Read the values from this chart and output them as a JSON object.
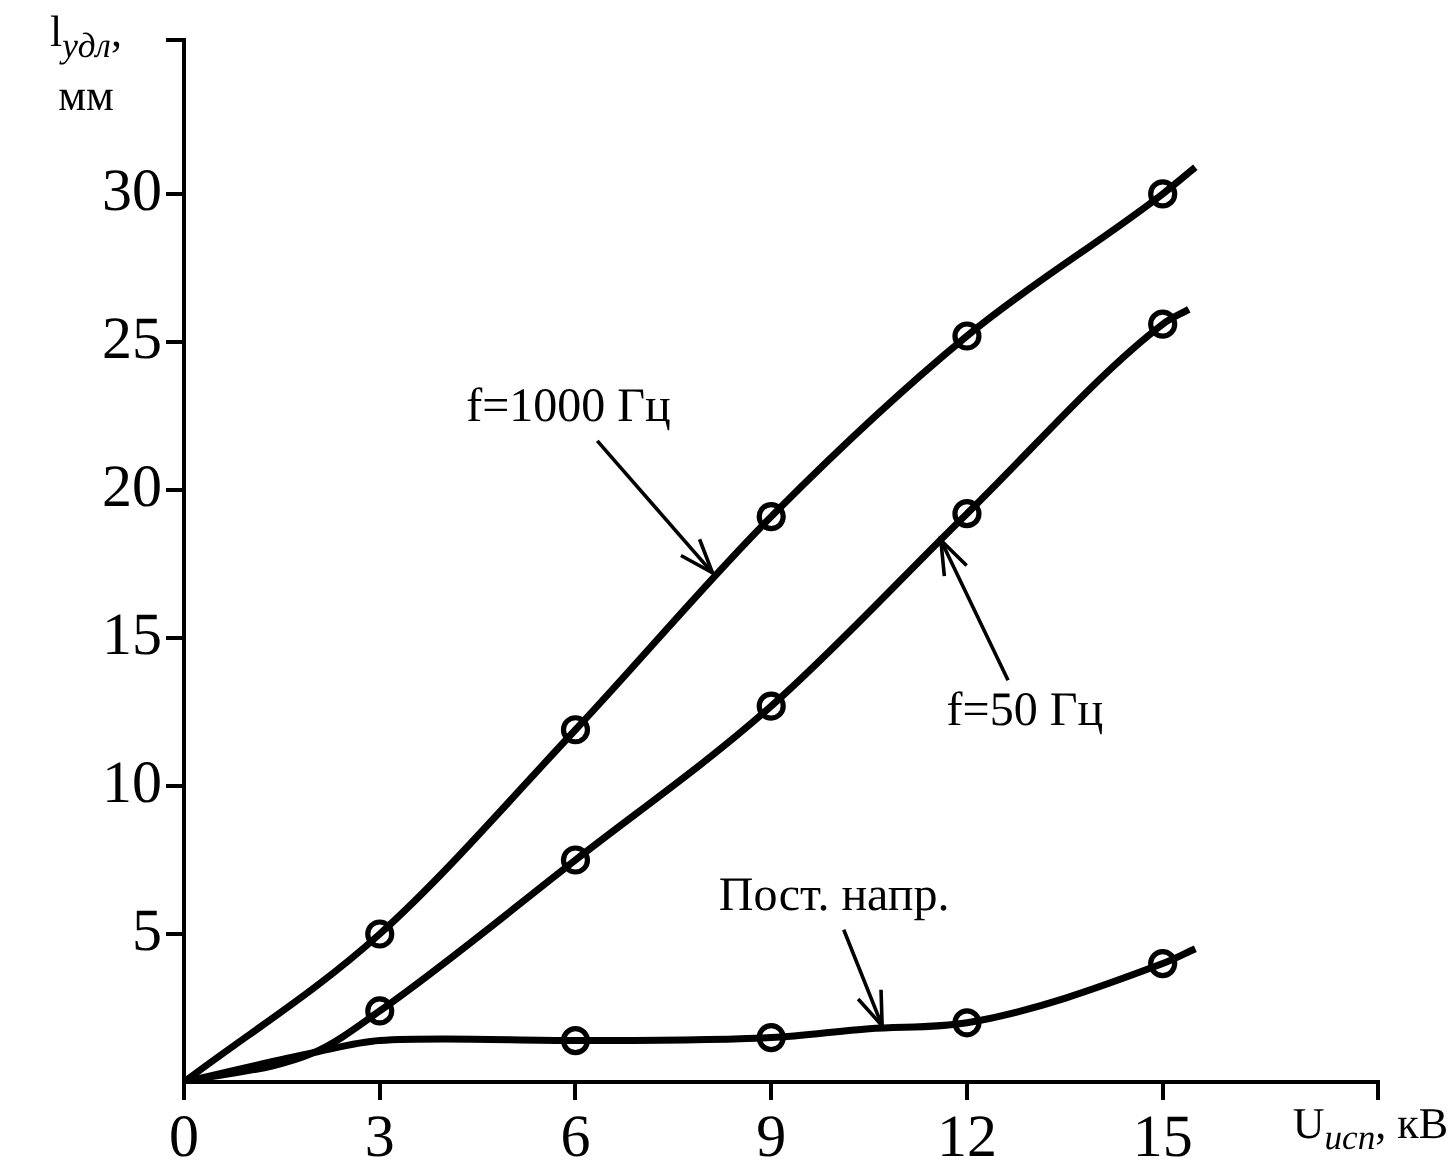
{
  "chart_data": {
    "type": "line",
    "xlabel": "U$_{исп}$, кВ",
    "ylabel": "l$_{удл}$, мм",
    "xlim": [
      0,
      18.3
    ],
    "xticks": [
      0,
      3,
      6,
      9,
      12,
      15,
      {
        "value": 18.3,
        "label": null
      }
    ],
    "ylim": [
      0,
      35.2
    ],
    "yticks": [
      5,
      10,
      15,
      20,
      25,
      30,
      {
        "value": 35.2,
        "label": null
      }
    ],
    "grid": false,
    "legend": false,
    "line_style": "solid",
    "series": [
      {
        "type": "line",
        "marker": "none",
        "color": "#000000",
        "x": [
          0,
          3,
          6,
          9,
          12,
          15,
          15.5
        ],
        "values": [
          0,
          5.0,
          11.9,
          19.1,
          25.2,
          30.0,
          30.9
        ]
      },
      {
        "type": "line",
        "marker": "none",
        "color": "#000000",
        "x": [
          0,
          2,
          3,
          6,
          9,
          12,
          15,
          15.4
        ],
        "values": [
          0,
          1.0,
          2.4,
          7.5,
          12.7,
          19.2,
          25.6,
          26.1
        ]
      },
      {
        "type": "line",
        "marker": "none",
        "color": "#000000",
        "x": [
          0,
          2,
          3,
          4,
          6,
          9,
          10.5,
          12,
          15,
          15.5
        ],
        "values": [
          0,
          1.0,
          1.4,
          1.45,
          1.4,
          1.5,
          1.8,
          2.0,
          4.0,
          4.5
        ]
      },
      {
        "type": "scatter",
        "marker": "circle",
        "color": "#000000",
        "x": [
          3,
          6,
          9,
          12,
          15
        ],
        "values": [
          5.0,
          11.9,
          19.1,
          25.2,
          30.0
        ]
      },
      {
        "type": "scatter",
        "marker": "circle",
        "color": "#000000",
        "x": [
          3,
          6,
          9,
          12,
          15
        ],
        "values": [
          2.4,
          7.5,
          12.7,
          19.2,
          25.6
        ]
      },
      {
        "type": "scatter",
        "marker": "circle",
        "color": "#000000",
        "x": [
          6,
          9,
          12,
          15
        ],
        "values": [
          1.4,
          1.5,
          2.0,
          4.0
        ]
      }
    ],
    "annotations": [
      {
        "text": "f=1000 Гц",
        "x": 8.1,
        "y": 17.2
      },
      {
        "text": "f=50 Гц",
        "x": 11.6,
        "y": 18.3
      },
      {
        "text": "Пост. напр.",
        "x": 10.7,
        "y": 1.9
      }
    ]
  }
}
